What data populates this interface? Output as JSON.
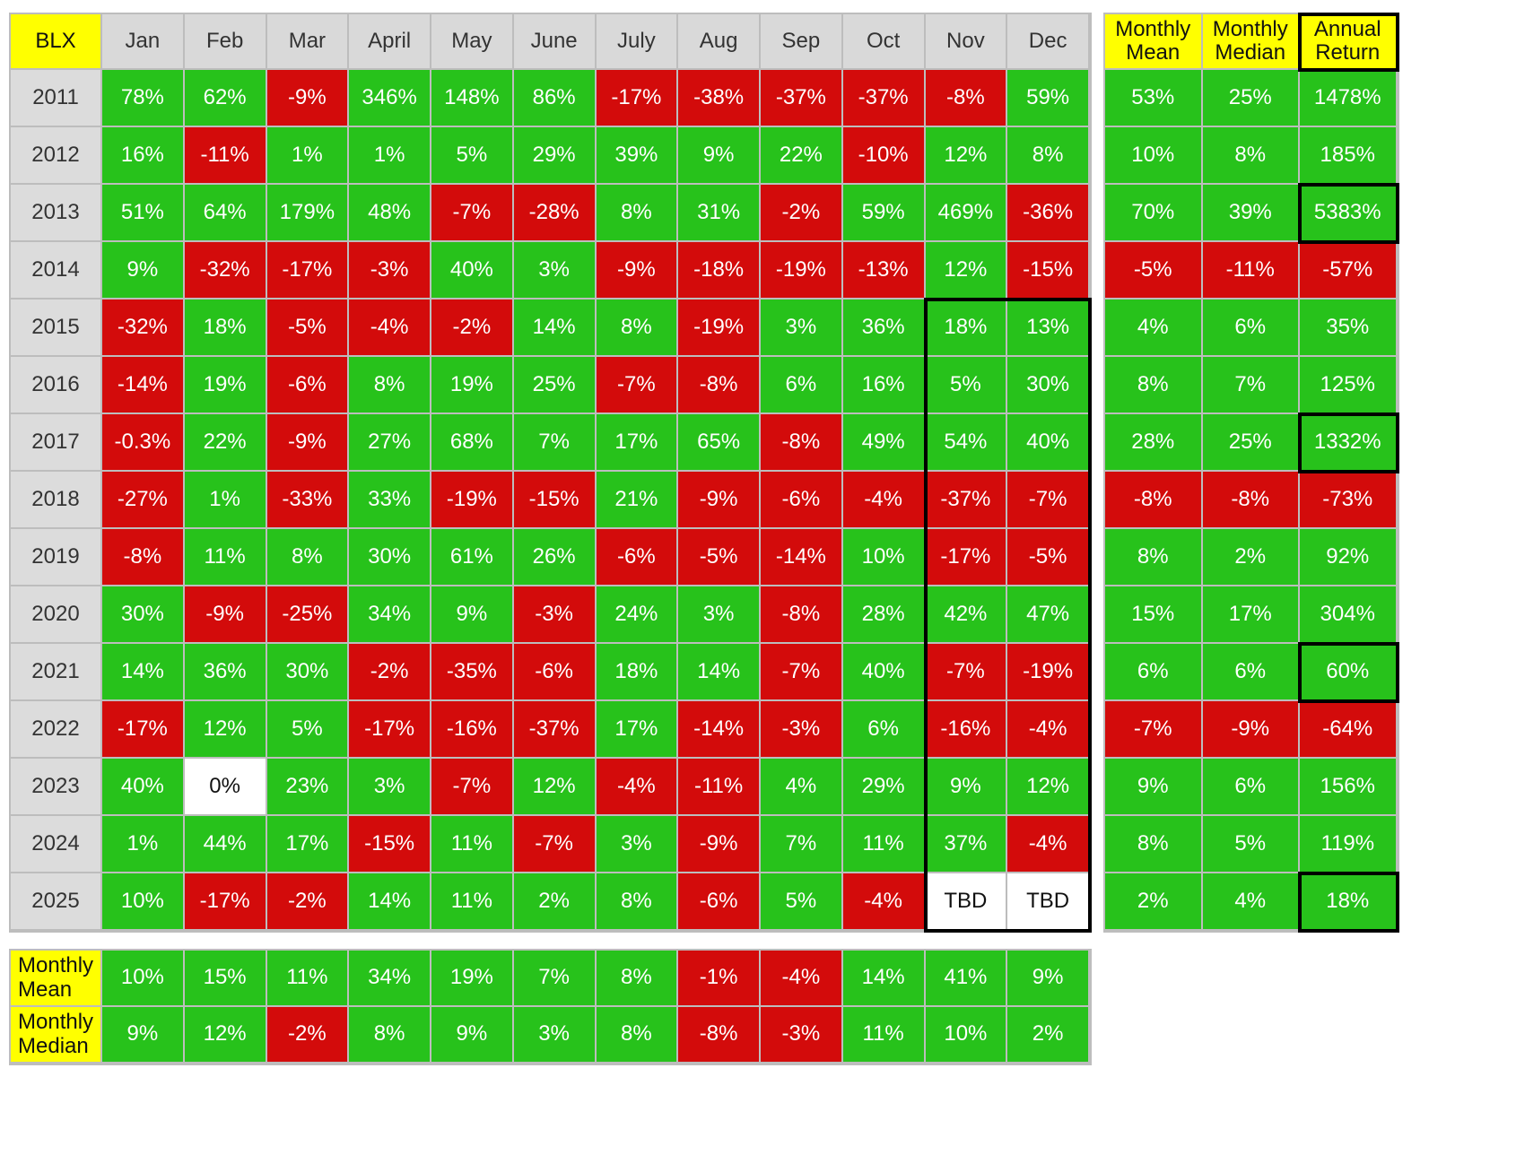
{
  "colors": {
    "positive": "#27c21b",
    "negative": "#d30b0b",
    "neutral": "#ffffff",
    "header": "#d9d9d9",
    "highlight": "#ffff00"
  },
  "chart_data": {
    "type": "table",
    "corner_label": "BLX",
    "months": [
      "Jan",
      "Feb",
      "Mar",
      "April",
      "May",
      "June",
      "July",
      "Aug",
      "Sep",
      "Oct",
      "Nov",
      "Dec"
    ],
    "summary_headers": [
      "Monthly\nMean",
      "Monthly\nMedian",
      "Annual\nReturn"
    ],
    "rows": [
      {
        "year": "2011",
        "values": [
          "78%",
          "62%",
          "-9%",
          "346%",
          "148%",
          "86%",
          "-17%",
          "-38%",
          "-37%",
          "-37%",
          "-8%",
          "59%"
        ],
        "summary": [
          "53%",
          "25%",
          "1478%"
        ]
      },
      {
        "year": "2012",
        "values": [
          "16%",
          "-11%",
          "1%",
          "1%",
          "5%",
          "29%",
          "39%",
          "9%",
          "22%",
          "-10%",
          "12%",
          "8%"
        ],
        "summary": [
          "10%",
          "8%",
          "185%"
        ]
      },
      {
        "year": "2013",
        "values": [
          "51%",
          "64%",
          "179%",
          "48%",
          "-7%",
          "-28%",
          "8%",
          "31%",
          "-2%",
          "59%",
          "469%",
          "-36%"
        ],
        "summary": [
          "70%",
          "39%",
          "5383%"
        ]
      },
      {
        "year": "2014",
        "values": [
          "9%",
          "-32%",
          "-17%",
          "-3%",
          "40%",
          "3%",
          "-9%",
          "-18%",
          "-19%",
          "-13%",
          "12%",
          "-15%"
        ],
        "summary": [
          "-5%",
          "-11%",
          "-57%"
        ]
      },
      {
        "year": "2015",
        "values": [
          "-32%",
          "18%",
          "-5%",
          "-4%",
          "-2%",
          "14%",
          "8%",
          "-19%",
          "3%",
          "36%",
          "18%",
          "13%"
        ],
        "summary": [
          "4%",
          "6%",
          "35%"
        ]
      },
      {
        "year": "2016",
        "values": [
          "-14%",
          "19%",
          "-6%",
          "8%",
          "19%",
          "25%",
          "-7%",
          "-8%",
          "6%",
          "16%",
          "5%",
          "30%"
        ],
        "summary": [
          "8%",
          "7%",
          "125%"
        ]
      },
      {
        "year": "2017",
        "values": [
          "-0.3%",
          "22%",
          "-9%",
          "27%",
          "68%",
          "7%",
          "17%",
          "65%",
          "-8%",
          "49%",
          "54%",
          "40%"
        ],
        "summary": [
          "28%",
          "25%",
          "1332%"
        ]
      },
      {
        "year": "2018",
        "values": [
          "-27%",
          "1%",
          "-33%",
          "33%",
          "-19%",
          "-15%",
          "21%",
          "-9%",
          "-6%",
          "-4%",
          "-37%",
          "-7%"
        ],
        "summary": [
          "-8%",
          "-8%",
          "-73%"
        ]
      },
      {
        "year": "2019",
        "values": [
          "-8%",
          "11%",
          "8%",
          "30%",
          "61%",
          "26%",
          "-6%",
          "-5%",
          "-14%",
          "10%",
          "-17%",
          "-5%"
        ],
        "summary": [
          "8%",
          "2%",
          "92%"
        ]
      },
      {
        "year": "2020",
        "values": [
          "30%",
          "-9%",
          "-25%",
          "34%",
          "9%",
          "-3%",
          "24%",
          "3%",
          "-8%",
          "28%",
          "42%",
          "47%"
        ],
        "summary": [
          "15%",
          "17%",
          "304%"
        ]
      },
      {
        "year": "2021",
        "values": [
          "14%",
          "36%",
          "30%",
          "-2%",
          "-35%",
          "-6%",
          "18%",
          "14%",
          "-7%",
          "40%",
          "-7%",
          "-19%"
        ],
        "summary": [
          "6%",
          "6%",
          "60%"
        ]
      },
      {
        "year": "2022",
        "values": [
          "-17%",
          "12%",
          "5%",
          "-17%",
          "-16%",
          "-37%",
          "17%",
          "-14%",
          "-3%",
          "6%",
          "-16%",
          "-4%"
        ],
        "summary": [
          "-7%",
          "-9%",
          "-64%"
        ]
      },
      {
        "year": "2023",
        "values": [
          "40%",
          "0%",
          "23%",
          "3%",
          "-7%",
          "12%",
          "-4%",
          "-11%",
          "4%",
          "29%",
          "9%",
          "12%"
        ],
        "summary": [
          "9%",
          "6%",
          "156%"
        ]
      },
      {
        "year": "2024",
        "values": [
          "1%",
          "44%",
          "17%",
          "-15%",
          "11%",
          "-7%",
          "3%",
          "-9%",
          "7%",
          "11%",
          "37%",
          "-4%"
        ],
        "summary": [
          "8%",
          "5%",
          "119%"
        ]
      },
      {
        "year": "2025",
        "values": [
          "10%",
          "-17%",
          "-2%",
          "14%",
          "11%",
          "2%",
          "8%",
          "-6%",
          "5%",
          "-4%",
          "TBD",
          "TBD"
        ],
        "summary": [
          "2%",
          "4%",
          "18%"
        ]
      }
    ],
    "footer_rows": [
      {
        "label": "Monthly\nMean",
        "values": [
          "10%",
          "15%",
          "11%",
          "34%",
          "19%",
          "7%",
          "8%",
          "-1%",
          "-4%",
          "14%",
          "41%",
          "9%"
        ]
      },
      {
        "label": "Monthly\nMedian",
        "values": [
          "9%",
          "12%",
          "-2%",
          "8%",
          "9%",
          "3%",
          "8%",
          "-8%",
          "-3%",
          "11%",
          "10%",
          "2%"
        ]
      }
    ],
    "highlighted_years": [
      "2013",
      "2017",
      "2021",
      "2025"
    ],
    "highlighted_months": [
      "Nov",
      "Dec"
    ],
    "highlighted_years_from": "2015"
  }
}
